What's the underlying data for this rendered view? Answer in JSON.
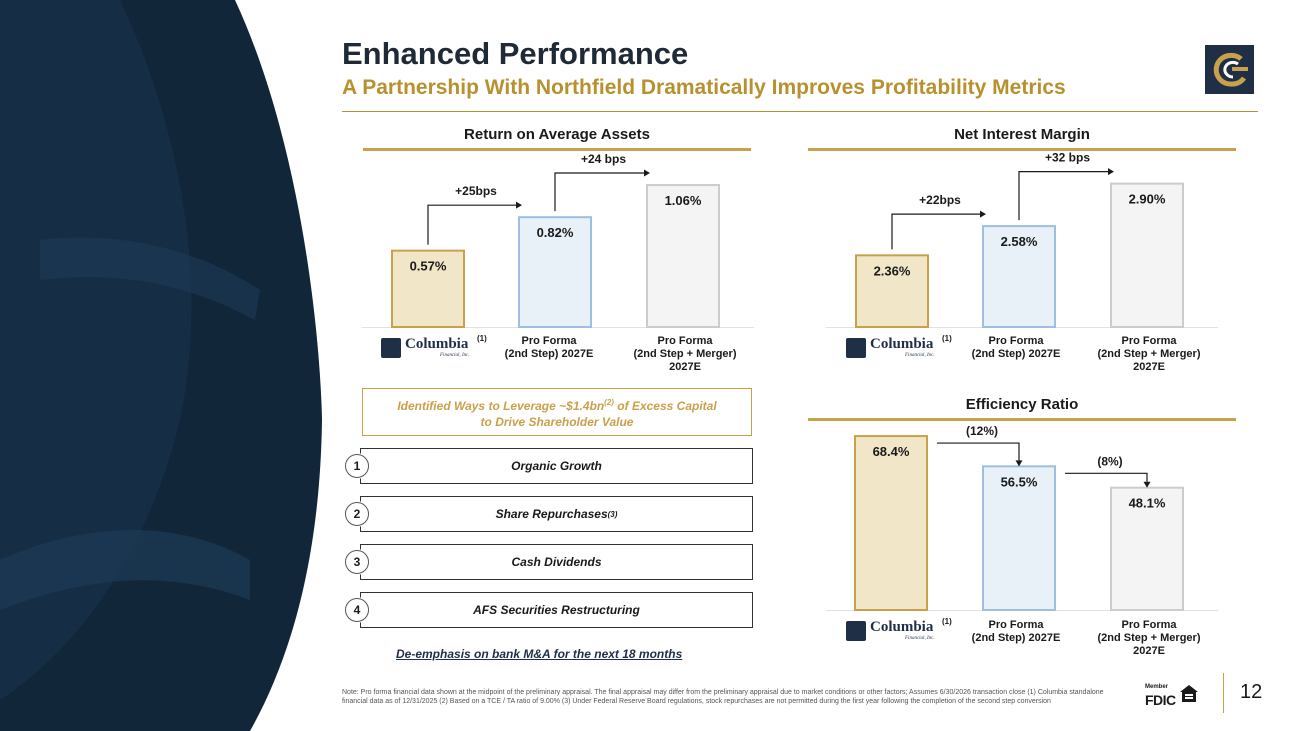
{
  "header": {
    "title": "Enhanced Performance",
    "subtitle": "A Partnership With Northfield Dramatically Improves Profitability Metrics"
  },
  "brand": {
    "name": "Columbia",
    "sup": "(1)",
    "sub": "Financial, Inc."
  },
  "chart_data": [
    {
      "type": "bar",
      "title": "Return on Average Assets",
      "categories": [
        "Columbia (1)",
        "Pro Forma (2nd Step) 2027E",
        "Pro Forma (2nd Step + Merger) 2027E"
      ],
      "category_lines": [
        [],
        [
          "Pro Forma",
          "(2nd Step) 2027E"
        ],
        [
          "Pro Forma",
          "(2nd Step + Merger)",
          "2027E"
        ]
      ],
      "values": [
        0.57,
        0.82,
        1.06
      ],
      "labels": [
        "0.57%",
        "0.82%",
        "1.06%"
      ],
      "ylim": [
        0,
        1.12
      ],
      "annotations": [
        {
          "from": 0,
          "to": 1,
          "text": "+25bps",
          "direction": "up"
        },
        {
          "from": 1,
          "to": 2,
          "text": "+24 bps",
          "direction": "up"
        }
      ]
    },
    {
      "type": "bar",
      "title": "Net Interest Margin",
      "categories": [
        "Columbia (1)",
        "Pro Forma (2nd Step) 2027E",
        "Pro Forma (2nd Step + Merger) 2027E"
      ],
      "category_lines": [
        [],
        [
          "Pro Forma",
          "(2nd Step) 2027E"
        ],
        [
          "Pro Forma",
          "(2nd Step + Merger)",
          "2027E"
        ]
      ],
      "values": [
        2.36,
        2.58,
        2.9
      ],
      "labels": [
        "2.36%",
        "2.58%",
        "2.90%"
      ],
      "ylim": [
        1.82,
        2.95
      ],
      "annotations": [
        {
          "from": 0,
          "to": 1,
          "text": "+22bps",
          "direction": "up"
        },
        {
          "from": 1,
          "to": 2,
          "text": "+32 bps",
          "direction": "up"
        }
      ]
    },
    {
      "type": "bar",
      "title": "Efficiency Ratio",
      "categories": [
        "Columbia (1)",
        "Pro Forma (2nd Step) 2027E",
        "Pro Forma (2nd Step + Merger) 2027E"
      ],
      "category_lines": [
        [],
        [
          "Pro Forma",
          "(2nd Step) 2027E"
        ],
        [
          "Pro Forma",
          "(2nd Step + Merger)",
          "2027E"
        ]
      ],
      "values": [
        68.4,
        56.5,
        48.1
      ],
      "labels": [
        "68.4%",
        "56.5%",
        "48.1%"
      ],
      "ylim": [
        0,
        70
      ],
      "annotations": [
        {
          "from": 0,
          "to": 1,
          "text": "(12%)",
          "direction": "down"
        },
        {
          "from": 1,
          "to": 2,
          "text": "(8%)",
          "direction": "down"
        }
      ]
    }
  ],
  "capital": {
    "line1_a": "Identified Ways to Leverage ~$1.4bn",
    "line1_sup": "(2)",
    "line1_b": " of Excess Capital",
    "line2": "to Drive Shareholder Value"
  },
  "levers": [
    {
      "num": "1",
      "label": "Organic Growth",
      "sup": ""
    },
    {
      "num": "2",
      "label": "Share Repurchases",
      "sup": "(3)"
    },
    {
      "num": "3",
      "label": "Cash Dividends",
      "sup": ""
    },
    {
      "num": "4",
      "label": "AFS Securities Restructuring",
      "sup": ""
    }
  ],
  "mna_note": "De-emphasis on bank M&A for the next 18 months",
  "footnote": "Note: Pro forma financial data shown at the midpoint of the preliminary appraisal. The final appraisal may differ from the preliminary appraisal due to market conditions or other factors; Assumes 6/30/2026 transaction close (1) Columbia standalone financial data as of 12/31/2025 (2) Based on a TCE / TA ratio of 9.00% (3) Under Federal Reserve Board regulations, stock repurchases are not permitted during the first year following the completion of the second step conversion",
  "fdic": {
    "member": "Member",
    "word": "FDIC"
  },
  "page_number": "12",
  "colors": {
    "navy": "#1f2f45",
    "gold": "#b8912f",
    "gold_light": "#c9a14a",
    "bar1_fill": "#f2e6c9",
    "bar1_stroke": "#c9a14a",
    "bar2_fill": "#e8f0f8",
    "bar2_stroke": "#9dbfe0",
    "bar3_fill": "#f4f4f4",
    "bar3_stroke": "#cccccc"
  }
}
